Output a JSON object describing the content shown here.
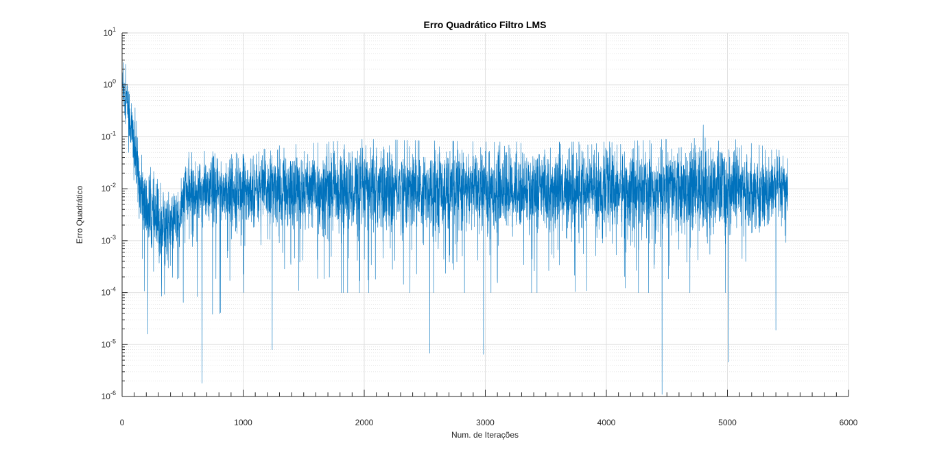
{
  "chart_data": {
    "type": "line",
    "title": "Erro Quadrático Filtro LMS",
    "xlabel": "Num. de Iterações",
    "ylabel": "Erro Quadrático",
    "xlim": [
      0,
      6000
    ],
    "ylim": [
      1e-06,
      10
    ],
    "yscale": "log",
    "grid": true,
    "minor_grid": true,
    "legend": "none",
    "x_ticks": [
      0,
      1000,
      2000,
      3000,
      4000,
      5000,
      6000
    ],
    "x_tick_labels": [
      "0",
      "1000",
      "2000",
      "3000",
      "4000",
      "5000",
      "6000"
    ],
    "y_ticks": [
      1e-06,
      1e-05,
      0.0001,
      0.001,
      0.01,
      0.1,
      1,
      10
    ],
    "y_tick_labels": [
      {
        "base": "10",
        "exp": "-6"
      },
      {
        "base": "10",
        "exp": "-5"
      },
      {
        "base": "10",
        "exp": "-4"
      },
      {
        "base": "10",
        "exp": "-3"
      },
      {
        "base": "10",
        "exp": "-2"
      },
      {
        "base": "10",
        "exp": "-1"
      },
      {
        "base": "10",
        "exp": "0"
      },
      {
        "base": "10",
        "exp": "1"
      }
    ],
    "series": [
      {
        "color": "#0072bd",
        "x_start": 1,
        "x_end": 5500,
        "envelope": [
          {
            "x": 1,
            "median": 1.0,
            "low": 0.5,
            "high": 2.7
          },
          {
            "x": 50,
            "median": 0.4,
            "low": 0.02,
            "high": 1.5
          },
          {
            "x": 100,
            "median": 0.06,
            "low": 0.01,
            "high": 0.5
          },
          {
            "x": 150,
            "median": 0.01,
            "low": 0.002,
            "high": 0.05
          },
          {
            "x": 200,
            "median": 0.004,
            "low": 1.6e-05,
            "high": 0.03
          },
          {
            "x": 300,
            "median": 0.002,
            "low": 2.5e-05,
            "high": 0.02
          },
          {
            "x": 400,
            "median": 0.002,
            "low": 3e-05,
            "high": 0.01
          },
          {
            "x": 480,
            "median": 0.003,
            "low": 5e-05,
            "high": 0.012
          },
          {
            "x": 520,
            "median": 0.008,
            "low": 1e-05,
            "high": 0.05
          },
          {
            "x": 1000,
            "median": 0.01,
            "low": 0.0001,
            "high": 0.06
          },
          {
            "x": 2000,
            "median": 0.01,
            "low": 0.0001,
            "high": 0.09
          },
          {
            "x": 3000,
            "median": 0.01,
            "low": 0.0001,
            "high": 0.08
          },
          {
            "x": 4000,
            "median": 0.01,
            "low": 0.0001,
            "high": 0.08
          },
          {
            "x": 5000,
            "median": 0.01,
            "low": 0.0001,
            "high": 0.1
          },
          {
            "x": 5500,
            "median": 0.01,
            "low": 0.001,
            "high": 0.05
          }
        ],
        "notable_points": [
          {
            "x": 15,
            "y": 2.7
          },
          {
            "x": 30,
            "y": 2.5
          },
          {
            "x": 213,
            "y": 1.6e-05
          },
          {
            "x": 660,
            "y": 1.8e-06
          },
          {
            "x": 1240,
            "y": 8e-06
          },
          {
            "x": 2540,
            "y": 6.8e-06
          },
          {
            "x": 2985,
            "y": 6.5e-06
          },
          {
            "x": 4460,
            "y": 1.1e-06
          },
          {
            "x": 4800,
            "y": 0.17
          },
          {
            "x": 5010,
            "y": 4.6e-06
          },
          {
            "x": 5400,
            "y": 1.9e-05
          }
        ]
      }
    ]
  }
}
